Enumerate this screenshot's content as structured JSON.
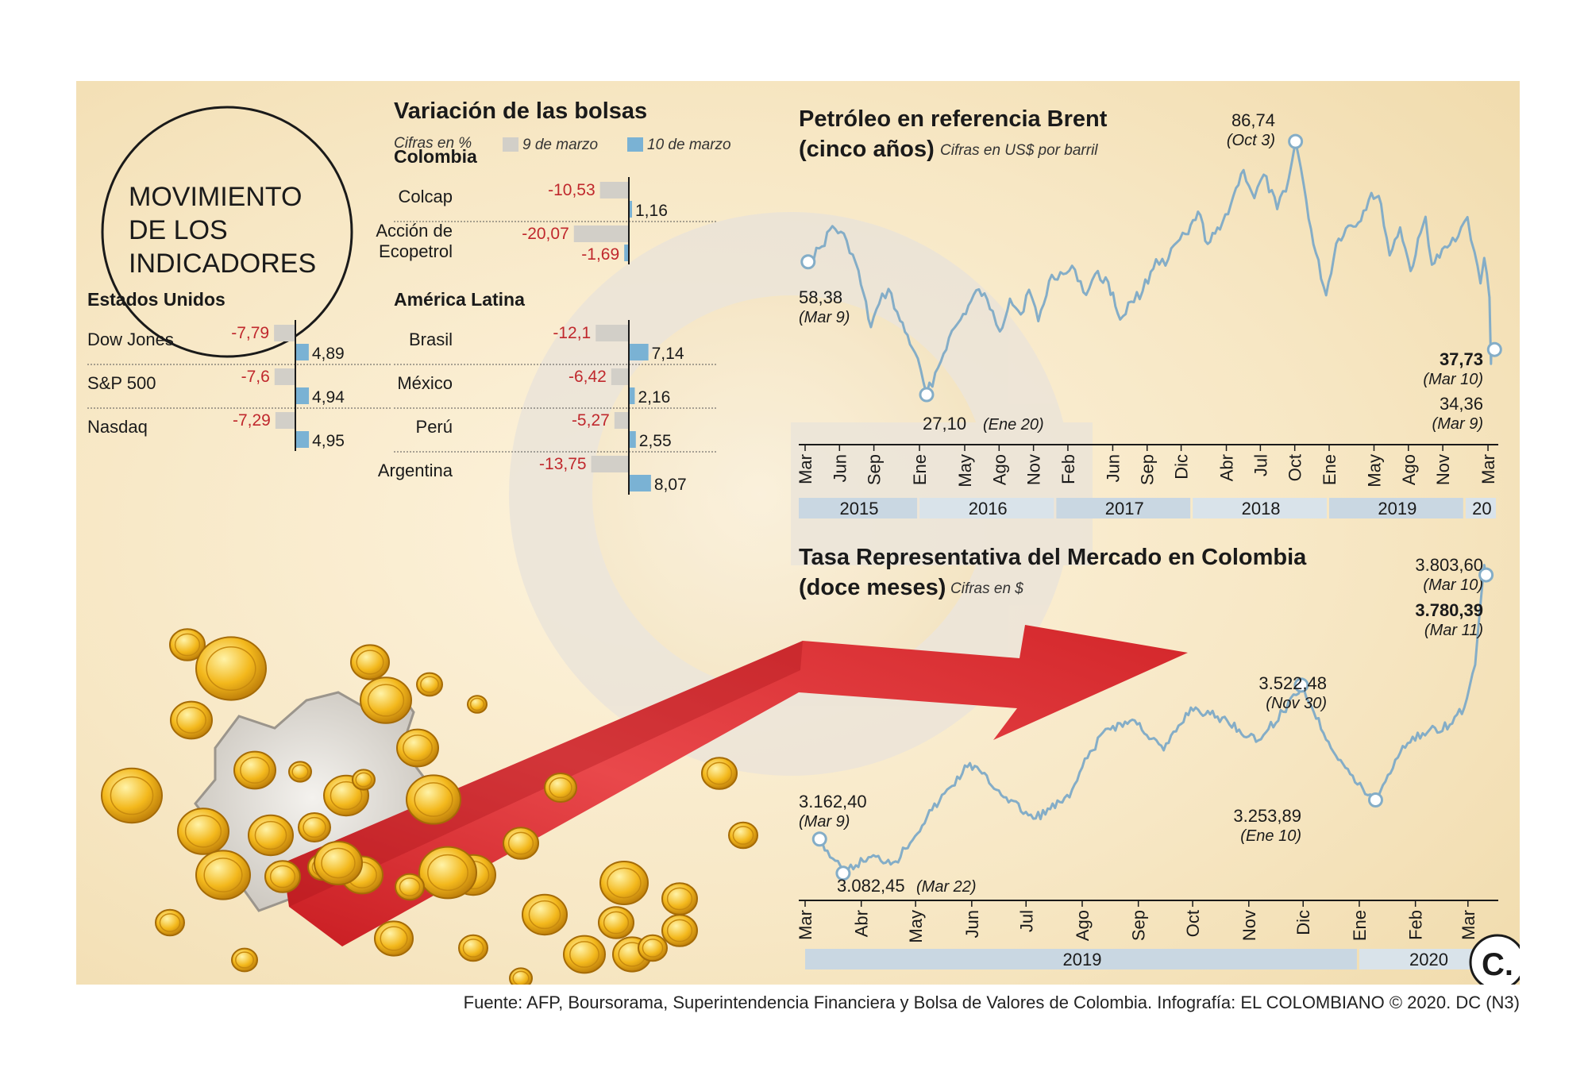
{
  "headline": [
    "MOVIMIENTO",
    "DE LOS",
    "INDICADORES"
  ],
  "source": "Fuente: AFP, Boursorama, Superintendencia Financiera y Bolsa de Valores de Colombia. Infografía: EL COLOMBIANO © 2020. DC (N3)",
  "logo_letter": "C.",
  "colors": {
    "neg_bar": "#d2cfc8",
    "pos_bar": "#7ab2d4",
    "neg_text": "#c0282d",
    "line": "#84adc7",
    "band_a": "#c9d7e2",
    "band_b": "#d9e3ea"
  },
  "stocks": {
    "title": "Variación de las bolsas",
    "units": "Cifras en %",
    "legend": [
      {
        "label": "9 de marzo",
        "color": "#d2cfc8"
      },
      {
        "label": "10 de marzo",
        "color": "#7ab2d4"
      }
    ],
    "groups": [
      {
        "title": "Estados Unidos",
        "items": [
          {
            "name": [
              "Dow Jones"
            ],
            "mar9": -7.79,
            "mar9_label": "-7,79",
            "mar10": 4.89,
            "mar10_label": "4,89"
          },
          {
            "name": [
              "S&P 500"
            ],
            "mar9": -7.6,
            "mar9_label": "-7,6",
            "mar10": 4.94,
            "mar10_label": "4,94"
          },
          {
            "name": [
              "Nasdaq"
            ],
            "mar9": -7.29,
            "mar9_label": "-7,29",
            "mar10": 4.95,
            "mar10_label": "4,95"
          }
        ]
      },
      {
        "title": "Colombia",
        "items": [
          {
            "name": [
              "Colcap"
            ],
            "mar9": -10.53,
            "mar9_label": "-10,53",
            "mar10": 1.16,
            "mar10_label": "1,16"
          },
          {
            "name": [
              "Acción de",
              "Ecopetrol"
            ],
            "mar9": -20.07,
            "mar9_label": "-20,07",
            "mar10": -1.69,
            "mar10_label": "-1,69"
          }
        ]
      },
      {
        "title": "América Latina",
        "items": [
          {
            "name": [
              "Brasil"
            ],
            "mar9": -12.1,
            "mar9_label": "-12,1",
            "mar10": 7.14,
            "mar10_label": "7,14"
          },
          {
            "name": [
              "México"
            ],
            "mar9": -6.42,
            "mar9_label": "-6,42",
            "mar10": 2.16,
            "mar10_label": "2,16"
          },
          {
            "name": [
              "Perú"
            ],
            "mar9": -5.27,
            "mar9_label": "-5,27",
            "mar10": 2.55,
            "mar10_label": "2,55"
          },
          {
            "name": [
              "Argentina"
            ],
            "mar9": -13.75,
            "mar9_label": "-13,75",
            "mar10": 8.07,
            "mar10_label": "8,07"
          }
        ]
      }
    ]
  },
  "chart_data": [
    {
      "type": "bar",
      "title": "Variación de las bolsas",
      "subtitle": "Cifras en %",
      "categories": [
        "Dow Jones",
        "S&P 500",
        "Nasdaq",
        "Colcap",
        "Acción de Ecopetrol",
        "Brasil",
        "México",
        "Perú",
        "Argentina"
      ],
      "series": [
        {
          "name": "9 de marzo",
          "values": [
            -7.79,
            -7.6,
            -7.29,
            -10.53,
            -20.07,
            -12.1,
            -6.42,
            -5.27,
            -13.75
          ]
        },
        {
          "name": "10 de marzo",
          "values": [
            4.89,
            4.94,
            4.95,
            1.16,
            -1.69,
            7.14,
            2.16,
            2.55,
            8.07
          ]
        }
      ],
      "legend": "top"
    },
    {
      "type": "line",
      "title": [
        "Petróleo en referencia Brent",
        "(cinco años)"
      ],
      "subtitle": "Cifras en US$ por barril",
      "x_ticks": [
        "Mar",
        "Jun",
        "Sep",
        "Ene",
        "May",
        "Ago",
        "Nov",
        "Feb",
        "Jun",
        "Sep",
        "Dic",
        "Abr",
        "Jul",
        "Oct",
        "Ene",
        "May",
        "Ago",
        "Nov",
        "Mar"
      ],
      "x_tick_dates": [
        "2015-03-01",
        "2015-06-01",
        "2015-09-01",
        "2016-01-01",
        "2016-05-01",
        "2016-08-01",
        "2016-11-01",
        "2017-02-01",
        "2017-06-01",
        "2017-09-01",
        "2017-12-01",
        "2018-04-01",
        "2018-07-01",
        "2018-10-01",
        "2019-01-01",
        "2019-05-01",
        "2019-08-01",
        "2019-11-01",
        "2020-03-01"
      ],
      "years": [
        "2015",
        "2016",
        "2017",
        "2018",
        "2019",
        "20"
      ],
      "year_starts": [
        "2015-01-01",
        "2016-01-01",
        "2017-01-01",
        "2018-01-01",
        "2019-01-01",
        "2020-01-01"
      ],
      "x_range": [
        "2015-03-01",
        "2020-03-20"
      ],
      "ylim": [
        20,
        92
      ],
      "points": [
        [
          "2015-03-09",
          58.38
        ],
        [
          "2015-04-15",
          62.0
        ],
        [
          "2015-05-13",
          66.8
        ],
        [
          "2015-06-20",
          63.4
        ],
        [
          "2015-07-15",
          58.0
        ],
        [
          "2015-08-24",
          43.0
        ],
        [
          "2015-09-15",
          48.5
        ],
        [
          "2015-10-10",
          52.0
        ],
        [
          "2015-11-10",
          44.5
        ],
        [
          "2015-12-20",
          37.0
        ],
        [
          "2016-01-20",
          27.1
        ],
        [
          "2016-02-20",
          33.5
        ],
        [
          "2016-03-20",
          40.5
        ],
        [
          "2016-04-20",
          44.8
        ],
        [
          "2016-06-08",
          51.9
        ],
        [
          "2016-07-15",
          46.8
        ],
        [
          "2016-08-03",
          42.0
        ],
        [
          "2016-08-30",
          49.7
        ],
        [
          "2016-09-28",
          46.0
        ],
        [
          "2016-10-20",
          51.8
        ],
        [
          "2016-11-14",
          44.4
        ],
        [
          "2016-12-20",
          55.3
        ],
        [
          "2017-01-20",
          55.5
        ],
        [
          "2017-02-20",
          56.5
        ],
        [
          "2017-03-22",
          50.6
        ],
        [
          "2017-04-15",
          55.5
        ],
        [
          "2017-05-20",
          53.6
        ],
        [
          "2017-06-21",
          44.8
        ],
        [
          "2017-07-20",
          49.0
        ],
        [
          "2017-08-20",
          51.5
        ],
        [
          "2017-09-25",
          59.0
        ],
        [
          "2017-10-20",
          57.5
        ],
        [
          "2017-11-20",
          63.0
        ],
        [
          "2017-12-20",
          64.9
        ],
        [
          "2018-01-15",
          70.2
        ],
        [
          "2018-02-10",
          62.6
        ],
        [
          "2018-03-15",
          66.0
        ],
        [
          "2018-04-20",
          74.0
        ],
        [
          "2018-05-17",
          80.0
        ],
        [
          "2018-06-15",
          73.4
        ],
        [
          "2018-07-10",
          78.9
        ],
        [
          "2018-08-15",
          70.8
        ],
        [
          "2018-09-15",
          78.0
        ],
        [
          "2018-10-03",
          86.74
        ],
        [
          "2018-10-25",
          76.5
        ],
        [
          "2018-11-20",
          62.5
        ],
        [
          "2018-12-24",
          50.5
        ],
        [
          "2019-01-20",
          62.7
        ],
        [
          "2019-02-15",
          66.3
        ],
        [
          "2019-03-20",
          67.6
        ],
        [
          "2019-04-24",
          74.6
        ],
        [
          "2019-05-20",
          72.0
        ],
        [
          "2019-06-12",
          59.9
        ],
        [
          "2019-07-10",
          66.5
        ],
        [
          "2019-08-07",
          56.2
        ],
        [
          "2019-09-16",
          69.0
        ],
        [
          "2019-10-03",
          57.7
        ],
        [
          "2019-11-20",
          62.4
        ],
        [
          "2019-12-20",
          66.5
        ],
        [
          "2020-01-06",
          68.9
        ],
        [
          "2020-01-25",
          60.7
        ],
        [
          "2020-02-10",
          53.3
        ],
        [
          "2020-02-20",
          59.3
        ],
        [
          "2020-03-05",
          50.0
        ],
        [
          "2020-03-09",
          34.36
        ],
        [
          "2020-03-10",
          37.73
        ]
      ],
      "annotations": [
        {
          "date": "2015-03-09",
          "value": 58.38,
          "label": "58,38",
          "sub": "(Mar 9)"
        },
        {
          "date": "2016-01-20",
          "value": 27.1,
          "label": "27,10",
          "sub": "(Ene 20)"
        },
        {
          "date": "2018-10-03",
          "value": 86.74,
          "label": "86,74",
          "sub": "(Oct 3)"
        },
        {
          "date": "2020-03-10",
          "value": 37.73,
          "label": "37,73",
          "sub": "(Mar 10)"
        },
        {
          "date": "2020-03-09",
          "value": 34.36,
          "label": "34,36",
          "sub": "(Mar 9)"
        }
      ]
    },
    {
      "type": "line",
      "title": [
        "Tasa Representativa del Mercado en Colombia",
        "(doce meses)"
      ],
      "subtitle": "Cifras en $",
      "x_ticks": [
        "Mar",
        "Abr",
        "May",
        "Jun",
        "Jul",
        "Ago",
        "Sep",
        "Oct",
        "Nov",
        "Dic",
        "Ene",
        "Feb",
        "Mar"
      ],
      "x_tick_dates": [
        "2019-03-01",
        "2019-04-01",
        "2019-05-01",
        "2019-06-01",
        "2019-07-01",
        "2019-08-01",
        "2019-09-01",
        "2019-10-01",
        "2019-11-01",
        "2019-12-01",
        "2020-01-01",
        "2020-02-01",
        "2020-03-01"
      ],
      "years": [
        "2019",
        "2020"
      ],
      "year_starts": [
        "2019-03-01",
        "2020-01-01"
      ],
      "x_range": [
        "2019-03-01",
        "2020-03-16"
      ],
      "ylim": [
        3030,
        3840
      ],
      "points": [
        [
          "2019-03-09",
          3162.4
        ],
        [
          "2019-03-22",
          3082.45
        ],
        [
          "2019-04-05",
          3120.0
        ],
        [
          "2019-04-20",
          3110.0
        ],
        [
          "2019-05-10",
          3230.0
        ],
        [
          "2019-05-31",
          3340.0
        ],
        [
          "2019-06-20",
          3260.0
        ],
        [
          "2019-07-05",
          3210.0
        ],
        [
          "2019-07-25",
          3260.0
        ],
        [
          "2019-08-01",
          3330.0
        ],
        [
          "2019-08-14",
          3420.0
        ],
        [
          "2019-08-30",
          3440.0
        ],
        [
          "2019-09-15",
          3370.0
        ],
        [
          "2019-09-30",
          3470.0
        ],
        [
          "2019-10-20",
          3440.0
        ],
        [
          "2019-11-05",
          3390.0
        ],
        [
          "2019-11-20",
          3460.0
        ],
        [
          "2019-11-30",
          3522.48
        ],
        [
          "2019-12-15",
          3390.0
        ],
        [
          "2019-12-31",
          3290.0
        ],
        [
          "2020-01-10",
          3253.89
        ],
        [
          "2020-01-25",
          3380.0
        ],
        [
          "2020-02-05",
          3410.0
        ],
        [
          "2020-02-20",
          3430.0
        ],
        [
          "2020-02-28",
          3470.0
        ],
        [
          "2020-03-05",
          3570.0
        ],
        [
          "2020-03-10",
          3803.6
        ],
        [
          "2020-03-11",
          3780.39
        ]
      ],
      "annotations": [
        {
          "date": "2019-03-09",
          "value": 3162.4,
          "label": "3.162,40",
          "sub": "(Mar 9)"
        },
        {
          "date": "2019-03-22",
          "value": 3082.45,
          "label": "3.082,45",
          "sub": "(Mar 22)"
        },
        {
          "date": "2019-11-30",
          "value": 3522.48,
          "label": "3.522,48",
          "sub": "(Nov 30)"
        },
        {
          "date": "2020-01-10",
          "value": 3253.89,
          "label": "3.253,89",
          "sub": "(Ene 10)"
        },
        {
          "date": "2020-03-10",
          "value": 3803.6,
          "label": "3.803,60",
          "sub": "(Mar 10)"
        },
        {
          "date": "2020-03-11",
          "value": 3780.39,
          "label": "3.780,39",
          "sub": "(Mar 11)"
        }
      ]
    }
  ]
}
